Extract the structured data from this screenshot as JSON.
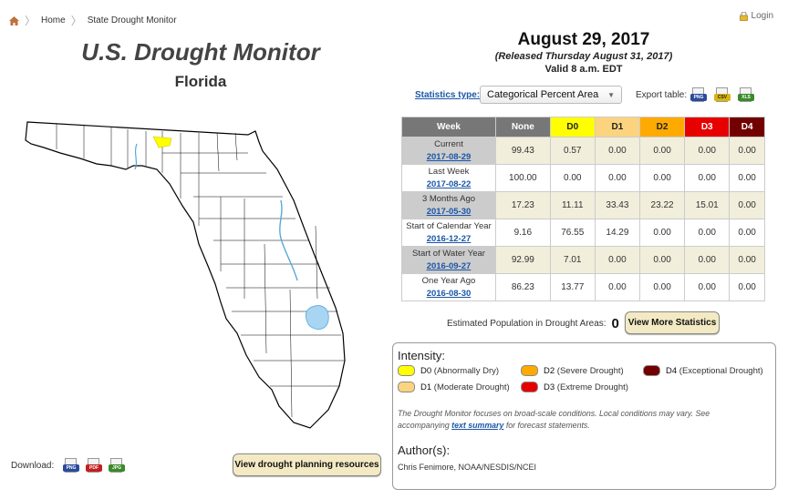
{
  "breadcrumb": {
    "home": "Home",
    "current": "State Drought Monitor"
  },
  "login": "Login",
  "title": "U.S. Drought Monitor",
  "state": "Florida",
  "date": "August 29, 2017",
  "released": "(Released Thursday August 31, 2017)",
  "valid": "Valid 8 a.m. EDT",
  "stats": {
    "label": "Statistics type:",
    "selected": "Categorical Percent Area",
    "export_label": "Export table:",
    "export": [
      "PNG",
      "CSV",
      "XLS"
    ]
  },
  "table": {
    "headers": [
      "Week",
      "None",
      "D0",
      "D1",
      "D2",
      "D3",
      "D4"
    ],
    "rows": [
      {
        "label": "Current",
        "date": "2017-08-29",
        "values": [
          "99.43",
          "0.57",
          "0.00",
          "0.00",
          "0.00",
          "0.00"
        ]
      },
      {
        "label": "Last Week",
        "date": "2017-08-22",
        "values": [
          "100.00",
          "0.00",
          "0.00",
          "0.00",
          "0.00",
          "0.00"
        ]
      },
      {
        "label": "3 Months Ago",
        "date": "2017-05-30",
        "values": [
          "17.23",
          "11.11",
          "33.43",
          "23.22",
          "15.01",
          "0.00"
        ]
      },
      {
        "label": "Start of Calendar Year",
        "date": "2016-12-27",
        "values": [
          "9.16",
          "76.55",
          "14.29",
          "0.00",
          "0.00",
          "0.00"
        ]
      },
      {
        "label": "Start of Water Year",
        "date": "2016-09-27",
        "values": [
          "92.99",
          "7.01",
          "0.00",
          "0.00",
          "0.00",
          "0.00"
        ]
      },
      {
        "label": "One Year Ago",
        "date": "2016-08-30",
        "values": [
          "86.23",
          "13.77",
          "0.00",
          "0.00",
          "0.00",
          "0.00"
        ]
      }
    ]
  },
  "population": {
    "label": "Estimated Population in Drought Areas:",
    "value": "0"
  },
  "view_stats": "View More Statistics",
  "legend": {
    "title": "Intensity:",
    "items": [
      {
        "code": "D0",
        "desc": "(Abnormally Dry)",
        "color": "#ffff00"
      },
      {
        "code": "D1",
        "desc": "(Moderate Drought)",
        "color": "#fcd37f"
      },
      {
        "code": "D2",
        "desc": "(Severe Drought)",
        "color": "#ffaa00"
      },
      {
        "code": "D3",
        "desc": "(Extreme Drought)",
        "color": "#e60000"
      },
      {
        "code": "D4",
        "desc": "(Exceptional Drought)",
        "color": "#730000"
      }
    ],
    "note_before": "The Drought Monitor focuses on broad-scale conditions. Local conditions may vary. See accompanying ",
    "note_link": "text summary",
    "note_after": " for forecast statements.",
    "authors_title": "Author(s):",
    "authors": "Chris Fenimore, NOAA/NESDIS/NCEI"
  },
  "download": {
    "label": "Download:",
    "formats": [
      "PNG",
      "PDF",
      "JPG"
    ]
  },
  "plan_button": "View drought planning resources"
}
